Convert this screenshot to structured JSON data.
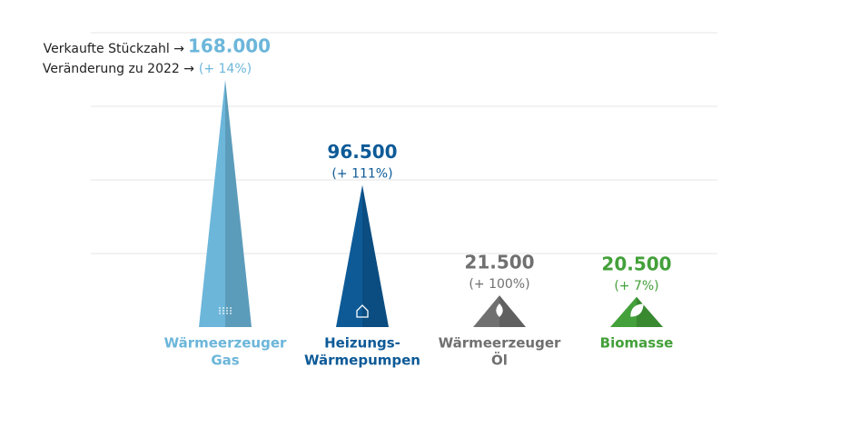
{
  "chart_data": {
    "type": "pyramid",
    "legend_labels": {
      "value": "Verkaufte Stückzahl →",
      "change": "Veränderung zu 2022 →"
    },
    "categories": [
      [
        "Wärmeerzeuger",
        "Gas"
      ],
      [
        "Heizungs-",
        "Wärmepumpen"
      ],
      [
        "Wärmeerzeuger",
        "Öl"
      ],
      [
        "Biomasse"
      ]
    ],
    "values": [
      168000,
      96500,
      21500,
      20500
    ],
    "value_labels": [
      "168.000",
      "96.500",
      "21.500",
      "20.500"
    ],
    "change_labels": [
      "(+ 14%)",
      "(+ 111%)",
      "(+ 100%)",
      "(+ 7%)"
    ],
    "colors": [
      "#6cb6da",
      "#0d5a97",
      "#707070",
      "#43a03a"
    ],
    "ylim": [
      0,
      200000
    ],
    "yticks": [
      0,
      50000,
      100000,
      150000,
      200000
    ],
    "grid": true
  }
}
